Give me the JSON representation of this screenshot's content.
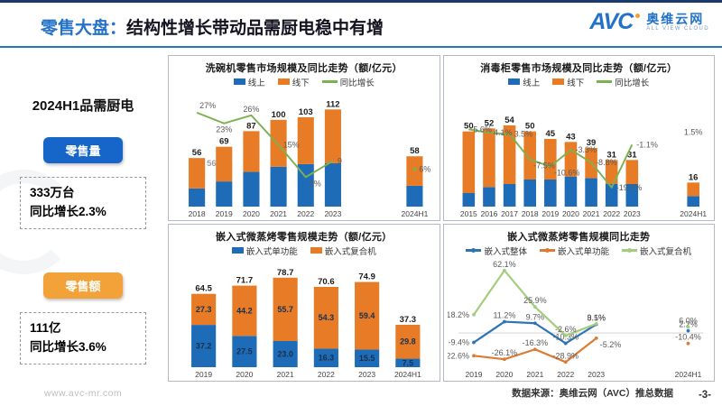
{
  "header": {
    "title_prefix": "零售大盘：",
    "title": "结构性增长带动品需厨电稳中有增",
    "logo_avc": "AVC",
    "logo_cn": "奥维云网",
    "logo_en": "ALL VIEW CLOUD"
  },
  "sidebar": {
    "title": "2024H1品需厨电",
    "metrics": [
      {
        "badge": "零售量",
        "badge_color": "#1566c8",
        "value": "333万台",
        "growth": "同比增长2.3%"
      },
      {
        "badge": "零售额",
        "badge_color": "#f2a238",
        "value": "111亿",
        "growth": "同比增长3.6%"
      }
    ],
    "website": "www.avc-mr.com"
  },
  "watermark_text": "奥维云网",
  "footer": {
    "source": "数据来源：奥维云网（AVC）推总数据",
    "page": "-3-"
  },
  "chart_data": [
    {
      "key": "dishwasher",
      "type": "stacked-bar-line",
      "title": "洗碗机零售市场规模及同比走势（额/亿元）",
      "categories": [
        "2018",
        "2019",
        "2020",
        "2021",
        "2022",
        "2023",
        "2024H1"
      ],
      "gap_slots": 2,
      "bar_axis_max": 130,
      "segments_estimated": true,
      "series": [
        {
          "name": "线上",
          "color": "#1e6cb8",
          "values": [
            21,
            29,
            40,
            46,
            49,
            50,
            24
          ]
        },
        {
          "name": "线下",
          "color": "#e87c26",
          "values": [
            35,
            40,
            47,
            54,
            54,
            62,
            34
          ]
        }
      ],
      "totals": [
        "56",
        "69",
        "87",
        "100",
        "103",
        "112",
        "58"
      ],
      "stray_label": {
        "text": "56",
        "cat": 0
      },
      "line": {
        "name": "同比增长",
        "color": "#7cb152",
        "values": [
          27,
          23,
          26,
          15,
          3,
          9,
          6
        ],
        "labels": [
          "27%",
          "23%",
          "26%",
          "15%",
          "3%",
          "9",
          "6%"
        ],
        "anchors": [
          "ar",
          "b",
          "a",
          "r",
          "br",
          "r",
          "r"
        ],
        "min": -8,
        "max": 34,
        "break_before_last": true,
        "last_marker": true
      }
    },
    {
      "key": "disinfection-cabinet",
      "type": "stacked-bar-line",
      "title": "消毒柜零售市场规模及同比走势（额/亿元）",
      "categories": [
        "2015",
        "2016",
        "2017",
        "2018",
        "2019",
        "2020",
        "2021",
        "2022",
        "2023",
        "2024H1"
      ],
      "gap_slots": 2,
      "bar_axis_max": 75,
      "segments_estimated": true,
      "series": [
        {
          "name": "线上",
          "color": "#1e6cb8",
          "values": [
            9,
            13,
            15,
            18,
            18,
            20,
            19,
            15,
            15,
            7
          ]
        },
        {
          "name": "线下",
          "color": "#e87c26",
          "values": [
            41,
            39,
            39,
            32,
            27,
            23,
            20,
            16,
            16,
            9
          ]
        }
      ],
      "totals": [
        "50",
        "52",
        "54",
        "50",
        "45",
        "43",
        "39",
        "31",
        "31",
        "16"
      ],
      "line": {
        "name": "同比增长",
        "color": "#7cb152",
        "values": [
          5.6,
          4.1,
          3.5,
          -7.5,
          -10.6,
          -3.3,
          -8.8,
          -19.7,
          -1.1,
          1.5
        ],
        "labels": [
          "5.6%",
          "4.1%",
          "3.5%",
          "-7.5%",
          "-10.6%",
          "-3.3%",
          "-8.8%",
          "-19.7%",
          "-1.1%",
          "1.5%"
        ],
        "anchors": [
          "r",
          "r",
          "r",
          "br",
          "br",
          "r",
          "r",
          "r",
          "r",
          "a"
        ],
        "min": -28,
        "max": 21,
        "break_before_last": true,
        "last_marker": false
      }
    },
    {
      "key": "embedded-mwo-scale",
      "type": "stacked-bar",
      "title": "嵌入式微蒸烤零售规模走势（额/亿元）",
      "categories": [
        "2019",
        "2020",
        "2021",
        "2022",
        "2023",
        "2024H1"
      ],
      "gap_slots": 0,
      "bar_axis_max": 92,
      "series": [
        {
          "name": "嵌入式单功能",
          "color": "#1e6cb8",
          "values": [
            37.2,
            27.5,
            23.0,
            16.3,
            15.5,
            7.5
          ],
          "labels": [
            "37.2",
            "27.5",
            "23.0",
            "16.3",
            "15.5",
            "7.5"
          ]
        },
        {
          "name": "嵌入式复合机",
          "color": "#e87c26",
          "values": [
            27.3,
            44.2,
            55.7,
            54.3,
            59.4,
            29.8
          ],
          "labels": [
            "27.3",
            "44.2",
            "55.7",
            "54.3",
            "59.4",
            "29.8"
          ]
        }
      ],
      "totals": [
        "64.5",
        "71.7",
        "78.7",
        "70.6",
        "74.9",
        "37.3"
      ]
    },
    {
      "key": "embedded-mwo-yoy",
      "type": "multi-line",
      "title": "嵌入式微蒸烤零售规模同比走势",
      "categories": [
        "2019",
        "2020",
        "2021",
        "2022",
        "2023",
        "2024H1"
      ],
      "gap_slots": 2,
      "min": -34,
      "max": 70,
      "zero_line": true,
      "break_before_last": true,
      "lines": [
        {
          "name": "嵌入式整体",
          "color": "#2e74b5",
          "values": [
            -9.4,
            11.2,
            9.7,
            -10.3,
            8.5,
            2.2
          ],
          "labels": [
            "-9.4%",
            "11.2%",
            "9.7%",
            "-10.3%",
            "8.5%",
            "2.2%"
          ],
          "anchors": [
            "l",
            "a",
            "a",
            "a",
            "a",
            "a"
          ]
        },
        {
          "name": "嵌入式单功能",
          "color": "#dd7a33",
          "values": [
            -22.6,
            -26.1,
            -16.3,
            -28.9,
            -5.2,
            -10.4
          ],
          "labels": [
            "-22.6%",
            "-26.1%",
            "-16.3%",
            "-28.9%",
            "-5.2%",
            "-10.4%"
          ],
          "anchors": [
            "l",
            "a",
            "a",
            "a",
            "br",
            "a"
          ]
        },
        {
          "name": "嵌入式复合机",
          "color": "#a4cd80",
          "values": [
            18.2,
            62.1,
            25.9,
            -2.6,
            9.1,
            6.0
          ],
          "labels": [
            "18.2%",
            "62.1%",
            "25.9%",
            "-2.6%",
            "9.1%",
            "6.0%"
          ],
          "anchors": [
            "l",
            "a",
            "a",
            "a",
            "a",
            "a"
          ]
        }
      ]
    }
  ]
}
